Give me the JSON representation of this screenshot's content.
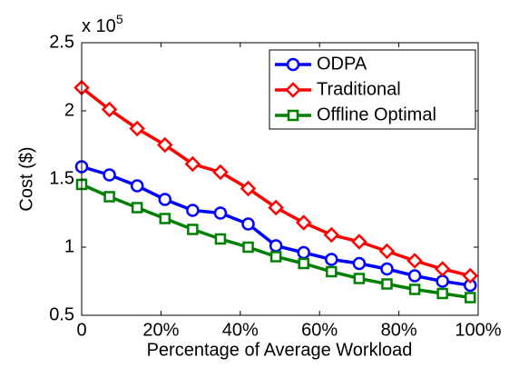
{
  "chart_data": {
    "type": "line",
    "xlabel": "Percentage of Average Workload",
    "ylabel": "Cost ($)",
    "y_multiplier": {
      "base": "x 10",
      "exponent": "5"
    },
    "x": [
      0,
      7,
      14,
      21,
      28,
      35,
      42,
      49,
      56,
      63,
      70,
      77,
      84,
      91,
      98
    ],
    "series": [
      {
        "name": "ODPA",
        "color": "#0000ff",
        "marker": "circle",
        "values": [
          1.59,
          1.53,
          1.45,
          1.35,
          1.27,
          1.25,
          1.17,
          1.01,
          0.96,
          0.91,
          0.88,
          0.84,
          0.79,
          0.75,
          0.72
        ]
      },
      {
        "name": "Traditional",
        "color": "#ff0000",
        "marker": "diamond",
        "values": [
          2.17,
          2.01,
          1.87,
          1.75,
          1.61,
          1.55,
          1.43,
          1.29,
          1.18,
          1.09,
          1.04,
          0.97,
          0.9,
          0.84,
          0.79
        ]
      },
      {
        "name": "Offline Optimal",
        "color": "#008000",
        "marker": "square",
        "values": [
          1.46,
          1.37,
          1.29,
          1.21,
          1.13,
          1.06,
          1.0,
          0.93,
          0.88,
          0.82,
          0.77,
          0.73,
          0.69,
          0.66,
          0.63
        ]
      }
    ],
    "xlim": [
      0,
      100
    ],
    "xticks": [
      0,
      {
        "value": 20,
        "label": "20%"
      },
      {
        "value": 40,
        "label": "40%"
      },
      {
        "value": 60,
        "label": "60%"
      },
      {
        "value": 80,
        "label": "80%"
      },
      {
        "value": 100,
        "label": "100%"
      }
    ],
    "ylim": [
      0.5,
      2.5
    ],
    "yticks": [
      0.5,
      1,
      1.5,
      2,
      2.5
    ],
    "legend": "upper right",
    "grid": false
  }
}
